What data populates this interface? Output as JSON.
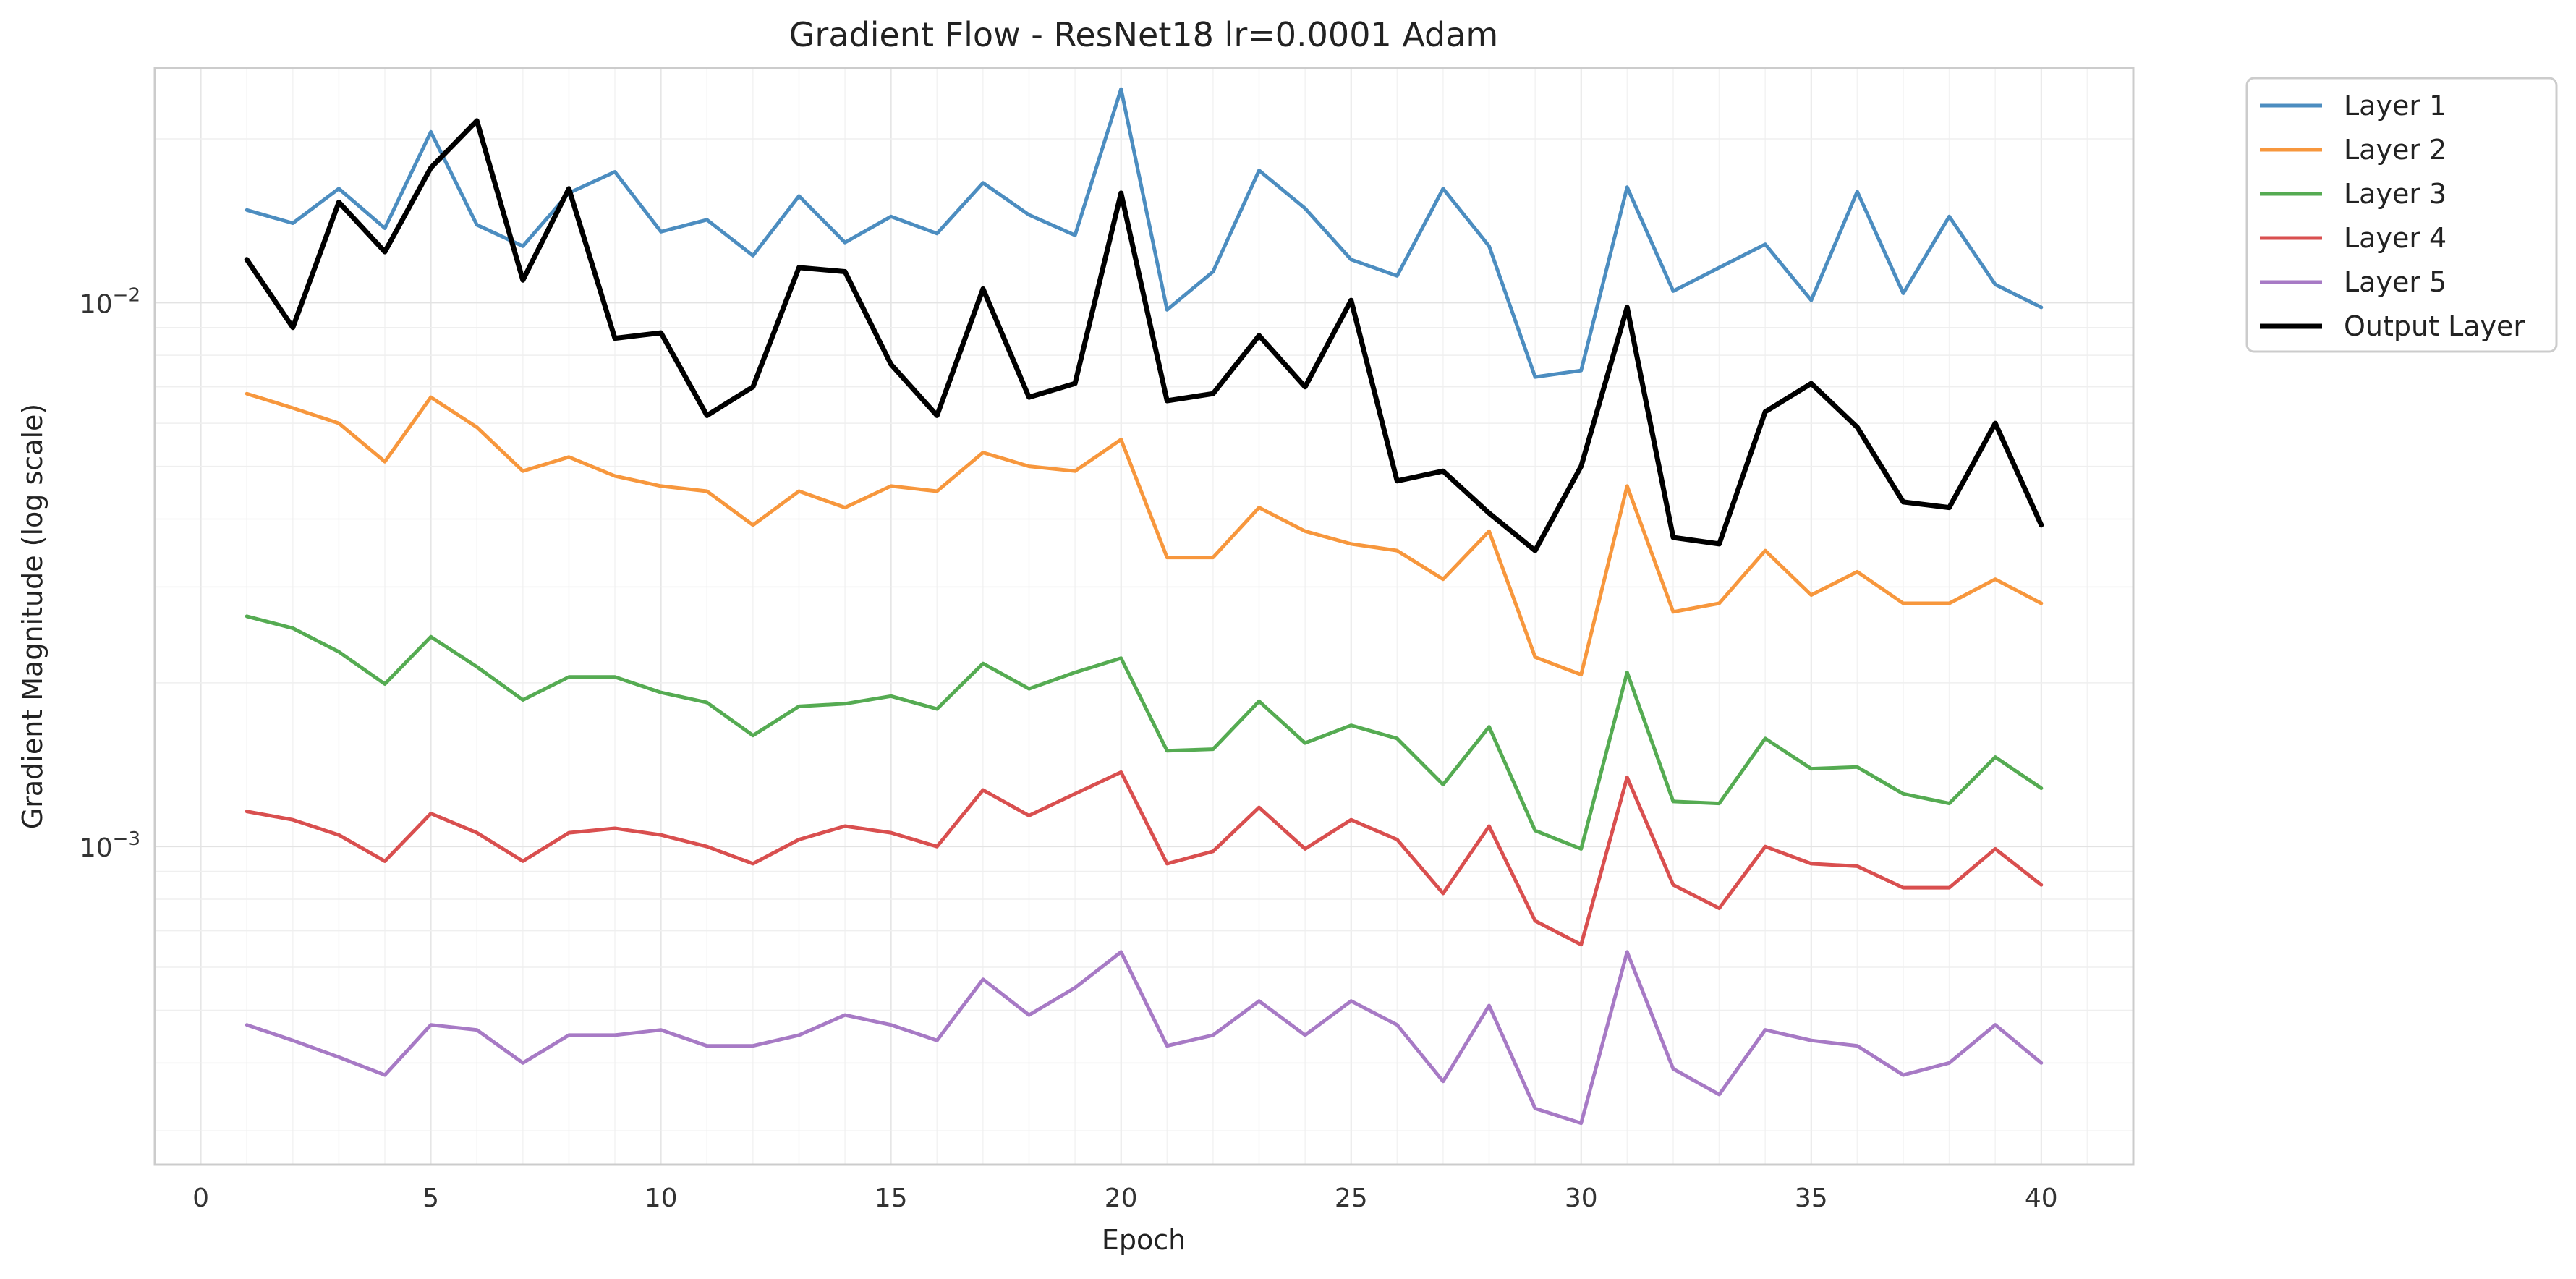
{
  "chart_data": {
    "type": "line",
    "title": "Gradient Flow - ResNet18 lr=0.0001 Adam",
    "xlabel": "Epoch",
    "ylabel": "Gradient Magnitude (log scale)",
    "yscale": "log",
    "xlim": [
      -1,
      42
    ],
    "ylim": [
      0.00026,
      0.027
    ],
    "x_ticks": [
      0,
      5,
      10,
      15,
      20,
      25,
      30,
      35,
      40
    ],
    "x_tick_labels": [
      "0",
      "5",
      "10",
      "15",
      "20",
      "25",
      "30",
      "35",
      "40"
    ],
    "y_major_ticks": [
      0.001,
      0.01
    ],
    "y_tick_base": "10",
    "y_tick_exponents": [
      "−3",
      "−2"
    ],
    "grid": true,
    "legend_position": "outside-top-right",
    "x": [
      1,
      2,
      3,
      4,
      5,
      6,
      7,
      8,
      9,
      10,
      11,
      12,
      13,
      14,
      15,
      16,
      17,
      18,
      19,
      20,
      21,
      22,
      23,
      24,
      25,
      26,
      27,
      28,
      29,
      30,
      31,
      32,
      33,
      34,
      35,
      36,
      37,
      38,
      39,
      40
    ],
    "series": [
      {
        "name": "Layer 1",
        "color": "#4c8dc0",
        "width": 5,
        "values": [
          0.0148,
          0.014,
          0.0162,
          0.0137,
          0.0206,
          0.0139,
          0.0127,
          0.0159,
          0.0174,
          0.0135,
          0.0142,
          0.0122,
          0.0157,
          0.0129,
          0.0144,
          0.0134,
          0.0166,
          0.0145,
          0.0133,
          0.0247,
          0.0097,
          0.0114,
          0.0175,
          0.0149,
          0.012,
          0.0112,
          0.0162,
          0.0127,
          0.0073,
          0.0075,
          0.0163,
          0.0105,
          0.0116,
          0.0128,
          0.0101,
          0.016,
          0.0104,
          0.0144,
          0.0108,
          0.0098
        ]
      },
      {
        "name": "Layer 2",
        "color": "#f7973d",
        "width": 5,
        "values": [
          0.0068,
          0.0064,
          0.006,
          0.0051,
          0.0067,
          0.0059,
          0.0049,
          0.0052,
          0.0048,
          0.0046,
          0.0045,
          0.0039,
          0.0045,
          0.0042,
          0.0046,
          0.0045,
          0.0053,
          0.005,
          0.0049,
          0.0056,
          0.0034,
          0.0034,
          0.0042,
          0.0038,
          0.0036,
          0.0035,
          0.0031,
          0.0038,
          0.00223,
          0.00207,
          0.0046,
          0.0027,
          0.0028,
          0.0035,
          0.0029,
          0.0032,
          0.0028,
          0.0028,
          0.0031,
          0.0028
        ]
      },
      {
        "name": "Layer 3",
        "color": "#55ab52",
        "width": 5,
        "values": [
          0.00265,
          0.00252,
          0.00228,
          0.00199,
          0.00243,
          0.00214,
          0.00186,
          0.00205,
          0.00205,
          0.00192,
          0.00184,
          0.0016,
          0.00181,
          0.00183,
          0.00189,
          0.00179,
          0.00217,
          0.00195,
          0.00209,
          0.00222,
          0.0015,
          0.00151,
          0.00185,
          0.00155,
          0.00167,
          0.00158,
          0.0013,
          0.00166,
          0.00107,
          0.00099,
          0.00209,
          0.00121,
          0.0012,
          0.00158,
          0.00139,
          0.0014,
          0.00125,
          0.0012,
          0.00146,
          0.00128
        ]
      },
      {
        "name": "Layer 4",
        "color": "#d94f4f",
        "width": 5,
        "values": [
          0.00116,
          0.00112,
          0.00105,
          0.00094,
          0.00115,
          0.00106,
          0.00094,
          0.00106,
          0.00108,
          0.00105,
          0.001,
          0.00093,
          0.00103,
          0.00109,
          0.00106,
          0.001,
          0.00127,
          0.00114,
          0.00125,
          0.00137,
          0.00093,
          0.00098,
          0.00118,
          0.00099,
          0.00112,
          0.00103,
          0.00082,
          0.00109,
          0.00073,
          0.00066,
          0.00134,
          0.00085,
          0.00077,
          0.001,
          0.00093,
          0.00092,
          0.00084,
          0.00084,
          0.00099,
          0.00085
        ]
      },
      {
        "name": "Layer 5",
        "color": "#a77ac5",
        "width": 5,
        "values": [
          0.00047,
          0.00044,
          0.00041,
          0.00038,
          0.00047,
          0.00046,
          0.0004,
          0.00045,
          0.00045,
          0.00046,
          0.00043,
          0.00043,
          0.00045,
          0.00049,
          0.00047,
          0.00044,
          0.00057,
          0.00049,
          0.00055,
          0.00064,
          0.00043,
          0.00045,
          0.00052,
          0.00045,
          0.00052,
          0.00047,
          0.00037,
          0.00051,
          0.00033,
          0.00031,
          0.00064,
          0.00039,
          0.00035,
          0.00046,
          0.00044,
          0.00043,
          0.00038,
          0.0004,
          0.00047,
          0.0004
        ]
      },
      {
        "name": "Output Layer",
        "color": "#000000",
        "width": 7,
        "values": [
          0.012,
          0.009,
          0.0153,
          0.0124,
          0.0177,
          0.0216,
          0.011,
          0.0162,
          0.0086,
          0.0088,
          0.0062,
          0.007,
          0.0116,
          0.0114,
          0.0077,
          0.0062,
          0.0106,
          0.0067,
          0.0071,
          0.0159,
          0.0066,
          0.0068,
          0.0087,
          0.007,
          0.0101,
          0.0047,
          0.0049,
          0.0041,
          0.0035,
          0.005,
          0.0098,
          0.0037,
          0.0036,
          0.0063,
          0.0071,
          0.0059,
          0.0043,
          0.0042,
          0.006,
          0.0039
        ]
      }
    ]
  }
}
